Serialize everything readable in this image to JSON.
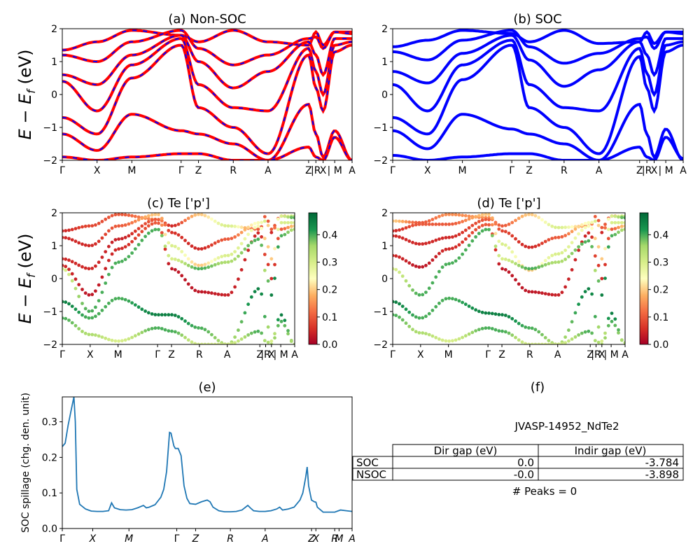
{
  "chart_data": [
    {
      "id": "a",
      "type": "line",
      "title": "(a) Non-SOC",
      "ylabel": "E − E_f (eV)",
      "ylim": [
        -2,
        2
      ],
      "yticks": [
        "2",
        "1",
        "0",
        "−1",
        "−2"
      ],
      "kpath": [
        "Γ",
        "X",
        "M",
        "Γ",
        "Z",
        "R",
        "A",
        "Z",
        "|R",
        "X",
        "| M",
        "A"
      ],
      "kpos": [
        0,
        0.12,
        0.24,
        0.41,
        0.47,
        0.59,
        0.71,
        0.85,
        0.875,
        0.9,
        0.94,
        1.0
      ],
      "series": [
        {
          "color": "#ff0000",
          "dash": "#0000ff",
          "y": [
            1.35,
            1.6,
            1.95,
            1.8,
            1.6,
            1.95,
            1.6,
            1.5,
            1.9,
            1.5,
            1.9,
            1.9
          ]
        },
        {
          "color": "#ff0000",
          "dash": "#0000ff",
          "y": [
            1.2,
            1.0,
            1.6,
            1.95,
            1.4,
            0.9,
            1.2,
            1.7,
            1.75,
            1.4,
            1.9,
            1.85
          ]
        },
        {
          "color": "#ff0000",
          "dash": "#0000ff",
          "y": [
            0.6,
            0.3,
            1.2,
            1.8,
            1.0,
            0.2,
            0.7,
            1.6,
            1.2,
            0.6,
            1.7,
            1.7
          ]
        },
        {
          "color": "#ff0000",
          "dash": "#0000ff",
          "y": [
            0.4,
            -0.5,
            0.9,
            1.7,
            0.3,
            -0.4,
            -0.5,
            1.4,
            0.7,
            0.0,
            1.5,
            1.6
          ]
        },
        {
          "color": "#ff0000",
          "dash": "#0000ff",
          "y": [
            -0.7,
            -1.2,
            0.5,
            1.5,
            -0.4,
            -1.0,
            -1.8,
            1.2,
            0.2,
            -0.5,
            1.3,
            1.5
          ]
        },
        {
          "color": "#ff0000",
          "dash": "#0000ff",
          "y": [
            -1.2,
            -1.7,
            -0.6,
            -1.1,
            -1.2,
            -1.5,
            -2.0,
            -0.3,
            -1.2,
            -1.9,
            -1.1,
            -2.0
          ]
        },
        {
          "color": "#ff0000",
          "dash": "#0000ff",
          "y": [
            -1.9,
            -2.0,
            -1.9,
            -1.8,
            -1.8,
            -2.0,
            -2.0,
            -1.6,
            -1.9,
            -2.0,
            -1.3,
            -2.0
          ]
        }
      ]
    },
    {
      "id": "b",
      "type": "line",
      "title": "(b) SOC",
      "ylim": [
        -2,
        2
      ],
      "yticks": [
        "2",
        "1",
        "0",
        "−1",
        "−2"
      ],
      "kpath": [
        "Γ",
        "X",
        "M",
        "Γ",
        "Z",
        "R",
        "A",
        "Z",
        "|R",
        "X",
        "| M",
        "A"
      ],
      "kpos": [
        0,
        0.12,
        0.24,
        0.41,
        0.47,
        0.59,
        0.71,
        0.85,
        0.875,
        0.9,
        0.94,
        1.0
      ],
      "series": [
        {
          "color": "#0000ff",
          "y": [
            1.45,
            1.65,
            1.95,
            1.85,
            1.6,
            1.95,
            1.55,
            1.6,
            1.9,
            1.55,
            1.9,
            1.9
          ]
        },
        {
          "color": "#0000ff",
          "y": [
            1.3,
            1.05,
            1.65,
            1.95,
            1.45,
            0.95,
            1.25,
            1.7,
            1.75,
            1.4,
            1.9,
            1.85
          ]
        },
        {
          "color": "#0000ff",
          "y": [
            0.7,
            0.35,
            1.25,
            1.8,
            1.05,
            0.25,
            0.75,
            1.6,
            1.2,
            0.6,
            1.7,
            1.7
          ]
        },
        {
          "color": "#0000ff",
          "y": [
            0.3,
            -0.5,
            0.9,
            1.65,
            0.3,
            -0.4,
            -0.5,
            1.4,
            0.65,
            0.0,
            1.5,
            1.6
          ]
        },
        {
          "color": "#0000ff",
          "y": [
            -0.7,
            -1.2,
            0.45,
            1.5,
            -0.4,
            -1.0,
            -1.8,
            1.15,
            0.2,
            -0.5,
            1.3,
            1.5
          ]
        },
        {
          "color": "#0000ff",
          "y": [
            -1.1,
            -1.65,
            -0.6,
            -1.05,
            -1.2,
            -1.5,
            -2.0,
            -0.3,
            -1.2,
            -1.9,
            -1.05,
            -2.0
          ]
        },
        {
          "color": "#0000ff",
          "y": [
            -1.85,
            -2.0,
            -1.9,
            -1.8,
            -1.8,
            -2.0,
            -2.0,
            -1.6,
            -1.9,
            -2.0,
            -1.3,
            -1.95
          ]
        }
      ]
    },
    {
      "id": "c",
      "type": "scatter",
      "title": "(c)  Te ['p']",
      "ylabel": "E − E_f (eV)",
      "ylim": [
        -2,
        2
      ],
      "yticks": [
        "2",
        "1",
        "0",
        "−1",
        "−2"
      ],
      "kpath": [
        "Γ",
        "X",
        "M",
        "Γ",
        "Z",
        "R",
        "A",
        "Z",
        "|R",
        "X",
        "| M",
        "A"
      ],
      "kpos": [
        0,
        0.12,
        0.24,
        0.41,
        0.47,
        0.59,
        0.71,
        0.85,
        0.875,
        0.9,
        0.94,
        1.0
      ],
      "colorbar": {
        "min": 0.0,
        "max": 0.48,
        "ticks": [
          "0.4",
          "0.3",
          "0.2",
          "0.1",
          "0.0"
        ],
        "tickvals": [
          0.4,
          0.3,
          0.2,
          0.1,
          0.0
        ]
      },
      "bands": [
        {
          "y": [
            1.45,
            1.6,
            1.95,
            1.8,
            1.6,
            1.95,
            1.6,
            1.5,
            1.9,
            1.5,
            1.9,
            1.9
          ],
          "c": [
            0.05,
            0.08,
            0.1,
            0.15,
            0.05,
            0.2,
            0.3,
            0.1,
            0.1,
            0.1,
            0.1,
            0.35
          ]
        },
        {
          "y": [
            1.25,
            1.0,
            1.6,
            1.95,
            1.4,
            0.9,
            1.2,
            1.7,
            1.75,
            1.4,
            1.9,
            1.85
          ],
          "c": [
            0.05,
            0.05,
            0.1,
            0.2,
            0.06,
            0.05,
            0.1,
            0.25,
            0.3,
            0.05,
            0.3,
            0.4
          ]
        },
        {
          "y": [
            0.6,
            0.3,
            1.2,
            1.8,
            1.0,
            0.4,
            0.7,
            1.6,
            1.2,
            0.6,
            1.7,
            1.7
          ],
          "c": [
            0.05,
            0.05,
            0.04,
            0.1,
            0.3,
            0.2,
            0.3,
            0.25,
            0.2,
            0.2,
            0.3,
            0.3
          ]
        },
        {
          "y": [
            0.4,
            -0.5,
            0.9,
            1.7,
            0.3,
            -0.4,
            -0.5,
            1.4,
            0.7,
            0.0,
            1.5,
            1.6
          ],
          "c": [
            0.05,
            0.03,
            0.05,
            0.1,
            0.03,
            0.03,
            0.04,
            0.05,
            0.08,
            0.05,
            0.1,
            0.2
          ]
        },
        {
          "y": [
            0.3,
            -1.0,
            0.5,
            1.5,
            0.6,
            0.3,
            0.5,
            1.2,
            0.2,
            -0.5,
            1.3,
            1.5
          ],
          "c": [
            0.3,
            0.4,
            0.4,
            0.4,
            0.3,
            0.4,
            0.35,
            0.4,
            0.35,
            0.45,
            0.4,
            0.35
          ]
        },
        {
          "y": [
            -0.7,
            -1.2,
            -0.6,
            -1.1,
            -1.1,
            -1.5,
            -2.0,
            -0.3,
            -1.2,
            -1.9,
            -1.1,
            -2.0
          ],
          "c": [
            0.45,
            0.4,
            0.4,
            0.45,
            0.45,
            0.4,
            0.35,
            0.45,
            0.4,
            0.3,
            0.45,
            0.35
          ]
        },
        {
          "y": [
            -1.2,
            -1.7,
            -1.9,
            -1.5,
            -1.6,
            -2.0,
            -2.0,
            -1.6,
            -1.9,
            -2.0,
            -1.3,
            -2.0
          ],
          "c": [
            0.4,
            0.35,
            0.3,
            0.4,
            0.4,
            0.3,
            0.3,
            0.4,
            0.35,
            0.35,
            0.4,
            0.35
          ]
        }
      ]
    },
    {
      "id": "d",
      "type": "scatter",
      "title": "(d) Te ['p']",
      "ylim": [
        -2,
        2
      ],
      "yticks": [
        "2",
        "1",
        "0",
        "−1",
        "−2"
      ],
      "kpath": [
        "Γ",
        "X",
        "M",
        "Γ",
        "Z",
        "R",
        "A",
        "Z",
        "|R",
        "X",
        "| M",
        "A"
      ],
      "kpos": [
        0,
        0.12,
        0.24,
        0.41,
        0.47,
        0.59,
        0.71,
        0.85,
        0.875,
        0.9,
        0.94,
        1.0
      ],
      "colorbar": {
        "min": 0.0,
        "max": 0.48,
        "ticks": [
          "0.4",
          "0.3",
          "0.2",
          "0.1",
          "0.0"
        ],
        "tickvals": [
          0.4,
          0.3,
          0.2,
          0.1,
          0.0
        ]
      },
      "bands": [
        {
          "y": [
            1.75,
            1.7,
            1.95,
            1.85,
            1.6,
            1.95,
            1.55,
            1.6,
            1.9,
            1.55,
            1.9,
            1.9
          ],
          "c": [
            0.2,
            0.1,
            0.15,
            0.15,
            0.1,
            0.2,
            0.3,
            0.15,
            0.1,
            0.1,
            0.1,
            0.35
          ]
        },
        {
          "y": [
            1.45,
            1.65,
            1.65,
            1.95,
            1.45,
            0.95,
            1.25,
            1.7,
            1.75,
            1.4,
            1.9,
            1.85
          ],
          "c": [
            0.05,
            0.1,
            0.1,
            0.2,
            0.08,
            0.05,
            0.1,
            0.25,
            0.3,
            0.05,
            0.3,
            0.4
          ]
        },
        {
          "y": [
            1.3,
            1.05,
            1.25,
            1.8,
            1.05,
            0.25,
            0.75,
            1.6,
            1.2,
            0.6,
            1.7,
            1.7
          ],
          "c": [
            0.05,
            0.05,
            0.05,
            0.1,
            0.3,
            0.2,
            0.3,
            0.25,
            0.2,
            0.2,
            0.3,
            0.3
          ]
        },
        {
          "y": [
            0.7,
            0.35,
            0.9,
            1.65,
            0.3,
            -0.4,
            -0.5,
            1.4,
            0.65,
            0.0,
            1.5,
            1.6
          ],
          "c": [
            0.05,
            0.03,
            0.05,
            0.1,
            0.03,
            0.03,
            0.04,
            0.05,
            0.08,
            0.05,
            0.1,
            0.2
          ]
        },
        {
          "y": [
            0.3,
            -0.5,
            0.45,
            1.5,
            0.6,
            0.3,
            0.5,
            1.15,
            0.2,
            -0.5,
            1.3,
            1.5
          ],
          "c": [
            0.3,
            0.4,
            0.4,
            0.4,
            0.3,
            0.4,
            0.35,
            0.4,
            0.35,
            0.45,
            0.4,
            0.35
          ]
        },
        {
          "y": [
            -0.7,
            -1.2,
            -0.6,
            -1.05,
            -1.1,
            -1.5,
            -2.0,
            -0.3,
            -1.2,
            -1.9,
            -1.05,
            -2.0
          ],
          "c": [
            0.45,
            0.4,
            0.4,
            0.45,
            0.45,
            0.4,
            0.35,
            0.45,
            0.4,
            0.3,
            0.45,
            0.35
          ]
        },
        {
          "y": [
            -1.1,
            -1.65,
            -1.9,
            -1.5,
            -1.6,
            -2.0,
            -2.0,
            -1.6,
            -1.9,
            -2.0,
            -1.3,
            -1.95
          ],
          "c": [
            0.4,
            0.35,
            0.3,
            0.4,
            0.4,
            0.3,
            0.3,
            0.4,
            0.35,
            0.35,
            0.4,
            0.35
          ]
        }
      ]
    },
    {
      "id": "e",
      "type": "line",
      "title": "(e)",
      "ylabel": "SOC spillage (chg. den. unit)",
      "ylim": [
        0,
        0.37
      ],
      "yticks": [
        0.0,
        0.1,
        0.2,
        0.3
      ],
      "yticklabels": [
        "0.0",
        "0.1",
        "0.2",
        "0.3"
      ],
      "kpath": [
        "Γ",
        "X",
        "M",
        "Γ",
        "Z",
        "R",
        "A",
        "Z",
        "X",
        "R",
        "M",
        "A"
      ],
      "kpos": [
        0,
        0.105,
        0.23,
        0.395,
        0.46,
        0.58,
        0.7,
        0.86,
        0.875,
        0.94,
        0.955,
        1.0
      ],
      "series": [
        {
          "color": "#1f77b4",
          "x": [
            0,
            0.01,
            0.02,
            0.03,
            0.04,
            0.045,
            0.05,
            0.06,
            0.08,
            0.1,
            0.12,
            0.14,
            0.16,
            0.17,
            0.18,
            0.2,
            0.22,
            0.24,
            0.26,
            0.28,
            0.29,
            0.3,
            0.32,
            0.34,
            0.35,
            0.36,
            0.37,
            0.375,
            0.385,
            0.39,
            0.4,
            0.41,
            0.42,
            0.43,
            0.44,
            0.46,
            0.48,
            0.5,
            0.51,
            0.52,
            0.54,
            0.56,
            0.58,
            0.6,
            0.62,
            0.64,
            0.65,
            0.66,
            0.68,
            0.7,
            0.72,
            0.74,
            0.75,
            0.76,
            0.78,
            0.8,
            0.82,
            0.83,
            0.84,
            0.845,
            0.85,
            0.86,
            0.87,
            0.875,
            0.88,
            0.9,
            0.92,
            0.93,
            0.94,
            0.96,
            0.98,
            1.0
          ],
          "y": [
            0.23,
            0.24,
            0.29,
            0.33,
            0.37,
            0.3,
            0.11,
            0.068,
            0.055,
            0.049,
            0.048,
            0.048,
            0.05,
            0.072,
            0.058,
            0.053,
            0.052,
            0.053,
            0.058,
            0.065,
            0.058,
            0.06,
            0.067,
            0.088,
            0.11,
            0.16,
            0.27,
            0.268,
            0.232,
            0.225,
            0.225,
            0.205,
            0.12,
            0.085,
            0.07,
            0.068,
            0.075,
            0.08,
            0.075,
            0.06,
            0.05,
            0.047,
            0.047,
            0.048,
            0.052,
            0.065,
            0.057,
            0.05,
            0.048,
            0.048,
            0.05,
            0.055,
            0.06,
            0.052,
            0.055,
            0.06,
            0.08,
            0.1,
            0.145,
            0.173,
            0.12,
            0.08,
            0.075,
            0.074,
            0.06,
            0.046,
            0.046,
            0.046,
            0.046,
            0.052,
            0.05,
            0.048
          ]
        }
      ]
    }
  ],
  "panel_f": {
    "title": "(f)",
    "system_label": "JVASP-14952_NdTe2",
    "table": {
      "headers": [
        "Dir gap (eV)",
        "Indir gap (eV)"
      ],
      "rows": [
        {
          "label": "SOC",
          "dir": "0.0",
          "indir": "-3.784"
        },
        {
          "label": "NSOC",
          "dir": "-0.0",
          "indir": "-3.898"
        }
      ]
    },
    "peaks_text": "# Peaks = 0"
  }
}
